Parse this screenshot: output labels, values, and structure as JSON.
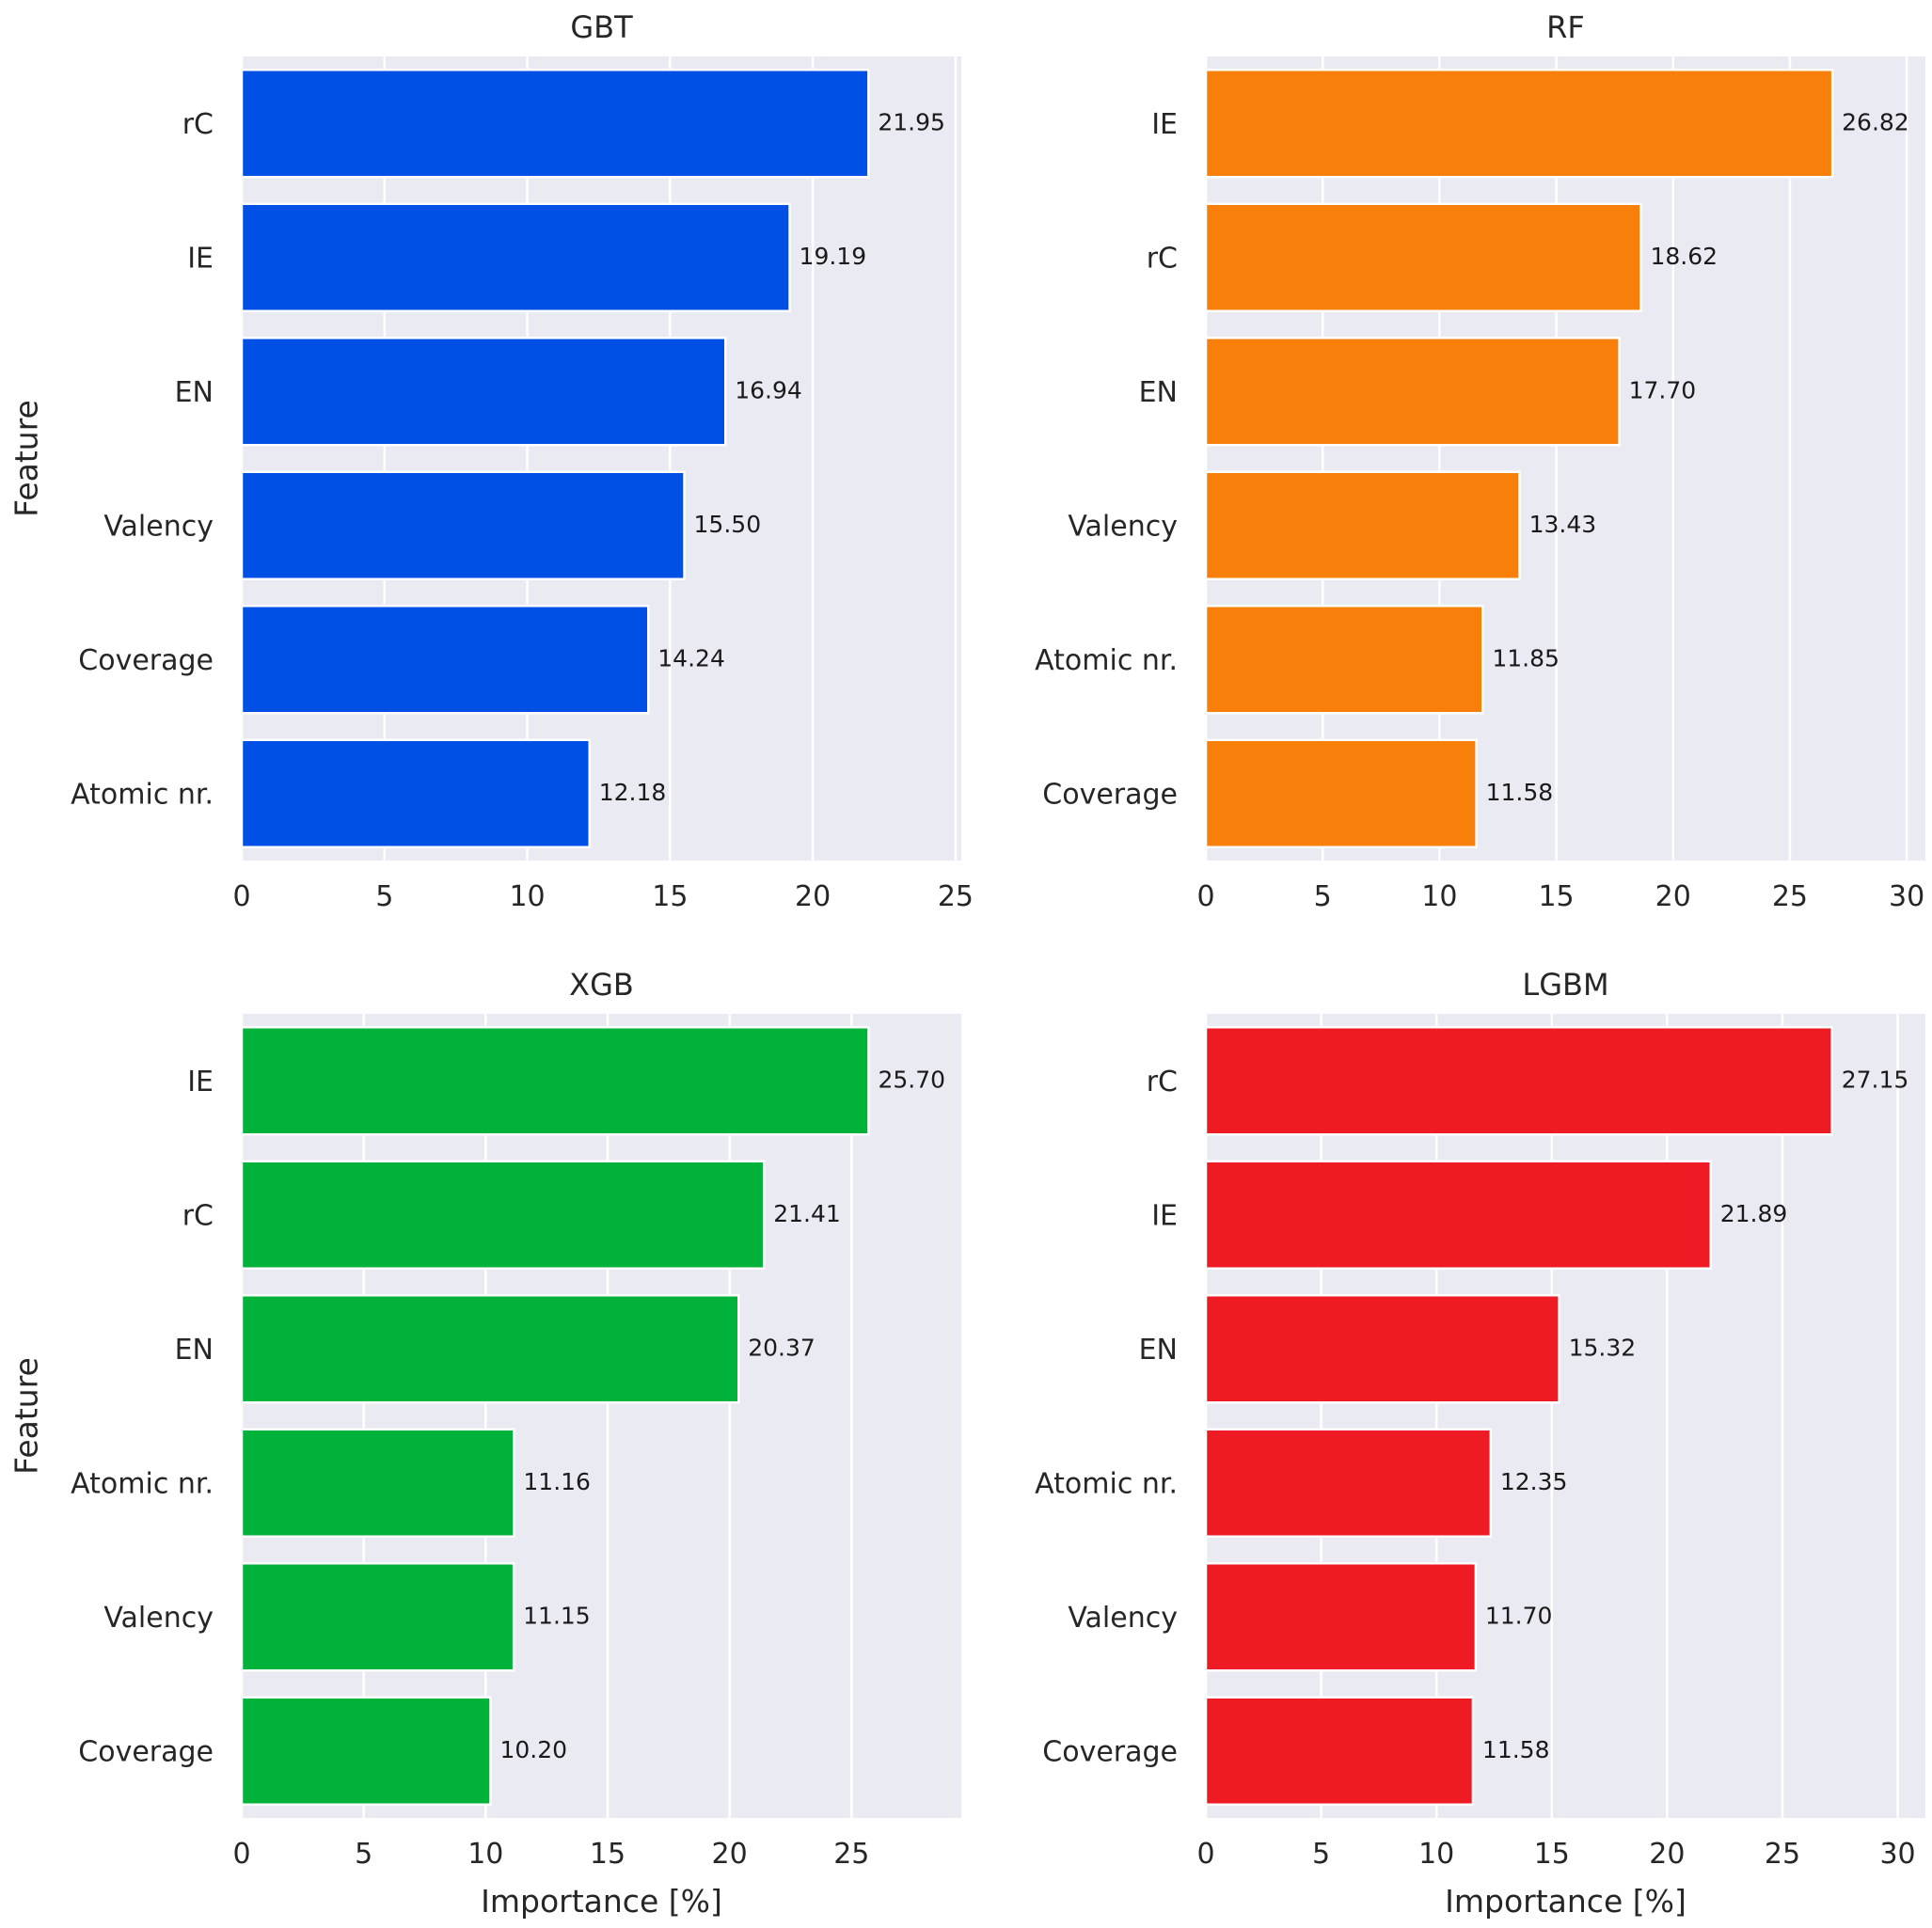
{
  "chart_data": [
    {
      "type": "bar",
      "orientation": "horizontal",
      "title": "GBT",
      "xlabel": "",
      "ylabel": "Feature",
      "categories": [
        "rC",
        "IE",
        "EN",
        "Valency",
        "Coverage",
        "Atomic nr."
      ],
      "values": [
        21.95,
        19.19,
        16.94,
        15.5,
        14.24,
        12.18
      ],
      "value_labels": [
        "21.95",
        "19.19",
        "16.94",
        "15.50",
        "14.24",
        "12.18"
      ],
      "xlim": [
        0,
        25.2
      ],
      "xticks": [
        0,
        5,
        10,
        15,
        20,
        25
      ],
      "xtick_labels": [
        "0",
        "5",
        "10",
        "15",
        "20",
        "25"
      ],
      "color": "#0050e6",
      "grid": true
    },
    {
      "type": "bar",
      "orientation": "horizontal",
      "title": "RF",
      "xlabel": "",
      "ylabel": "",
      "categories": [
        "IE",
        "rC",
        "EN",
        "Valency",
        "Atomic nr.",
        "Coverage"
      ],
      "values": [
        26.82,
        18.62,
        17.7,
        13.43,
        11.85,
        11.58
      ],
      "value_labels": [
        "26.82",
        "18.62",
        "17.70",
        "13.43",
        "11.85",
        "11.58"
      ],
      "xlim": [
        0,
        30.8
      ],
      "xticks": [
        0,
        5,
        10,
        15,
        20,
        25,
        30
      ],
      "xtick_labels": [
        "0",
        "5",
        "10",
        "15",
        "20",
        "25",
        "30"
      ],
      "color": "#f87f0a",
      "grid": true
    },
    {
      "type": "bar",
      "orientation": "horizontal",
      "title": "XGB",
      "xlabel": "Importance [%]",
      "ylabel": "Feature",
      "categories": [
        "IE",
        "rC",
        "EN",
        "Atomic nr.",
        "Valency",
        "Coverage"
      ],
      "values": [
        25.7,
        21.41,
        20.37,
        11.16,
        11.15,
        10.2
      ],
      "value_labels": [
        "25.70",
        "21.41",
        "20.37",
        "11.16",
        "11.15",
        "10.20"
      ],
      "xlim": [
        0,
        29.5
      ],
      "xticks": [
        0,
        5,
        10,
        15,
        20,
        25
      ],
      "xtick_labels": [
        "0",
        "5",
        "10",
        "15",
        "20",
        "25"
      ],
      "color": "#00b23a",
      "grid": true
    },
    {
      "type": "bar",
      "orientation": "horizontal",
      "title": "LGBM",
      "xlabel": "Importance [%]",
      "ylabel": "",
      "categories": [
        "rC",
        "IE",
        "EN",
        "Atomic nr.",
        "Valency",
        "Coverage"
      ],
      "values": [
        27.15,
        21.89,
        15.32,
        12.35,
        11.7,
        11.58
      ],
      "value_labels": [
        "27.15",
        "21.89",
        "15.32",
        "12.35",
        "11.70",
        "11.58"
      ],
      "xlim": [
        0,
        31.2
      ],
      "xticks": [
        0,
        5,
        10,
        15,
        20,
        25,
        30
      ],
      "xtick_labels": [
        "0",
        "5",
        "10",
        "15",
        "20",
        "25",
        "30"
      ],
      "color": "#ee1a24",
      "grid": true
    }
  ],
  "style": {
    "plot_background": "#eaeaf2",
    "grid_color": "#ffffff",
    "text_color": "#262626"
  }
}
